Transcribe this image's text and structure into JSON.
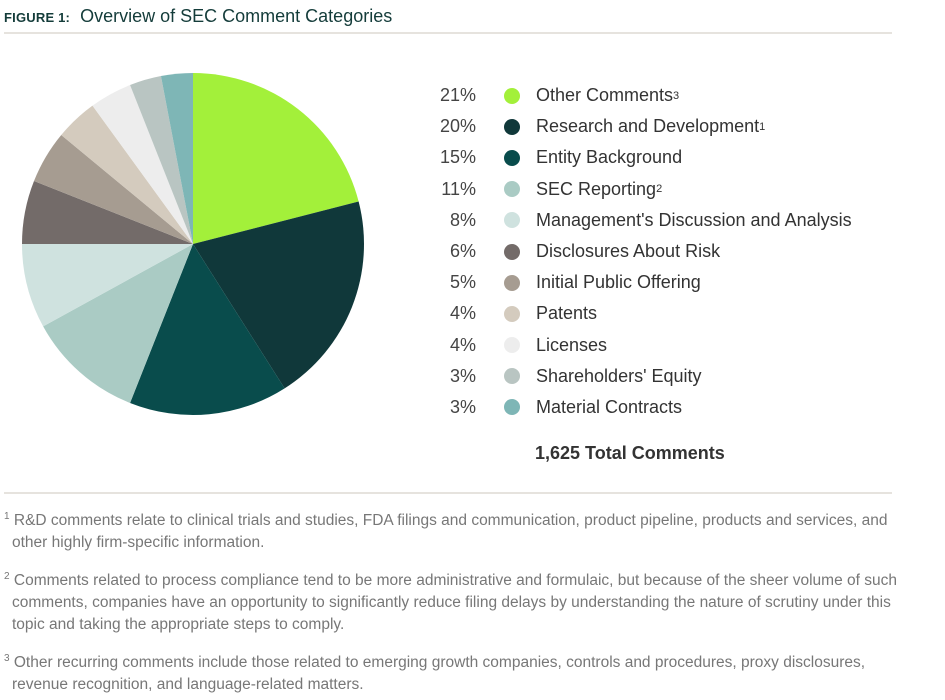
{
  "title": {
    "prefix": "FIGURE 1:",
    "text": "Overview of SEC Comment Categories"
  },
  "chart_data": {
    "type": "pie",
    "title": "Overview of SEC Comment Categories",
    "legend_position": "right",
    "slices": [
      {
        "label": "Other Comments",
        "sup": "3",
        "value": 21,
        "color": "#a3f03a"
      },
      {
        "label": "Research and Development",
        "sup": "1",
        "value": 20,
        "color": "#10383a"
      },
      {
        "label": "Entity Background",
        "sup": "",
        "value": 15,
        "color": "#094c4c"
      },
      {
        "label": "SEC Reporting",
        "sup": "2",
        "value": 11,
        "color": "#aacbc4"
      },
      {
        "label": "Management's Discussion and Analysis",
        "sup": "",
        "value": 8,
        "color": "#cfe2df"
      },
      {
        "label": "Disclosures About Risk",
        "sup": "",
        "value": 6,
        "color": "#736b69"
      },
      {
        "label": "Initial Public Offering",
        "sup": "",
        "value": 5,
        "color": "#a69c91"
      },
      {
        "label": "Patents",
        "sup": "",
        "value": 4,
        "color": "#d4cbbe"
      },
      {
        "label": "Licenses",
        "sup": "",
        "value": 4,
        "color": "#ededed"
      },
      {
        "label": "Shareholders' Equity",
        "sup": "",
        "value": 3,
        "color": "#b9c5c2"
      },
      {
        "label": "Material Contracts",
        "sup": "",
        "value": 3,
        "color": "#7eb6b6"
      }
    ],
    "total": "1,625 Total Comments"
  },
  "footnotes": [
    {
      "n": "1",
      "text": "R&D comments relate to clinical trials and studies, FDA filings and communication, product pipeline, products and services, and other highly firm-specific information."
    },
    {
      "n": "2",
      "text": "Comments related to process compliance tend to be more administrative and formulaic, but because of the sheer volume of such comments, companies have an opportunity to significantly reduce filing delays by understanding the nature of scrutiny under this topic and taking the appropriate steps to comply."
    },
    {
      "n": "3",
      "text": "Other recurring comments include those related to emerging growth companies, controls and procedures, proxy disclosures, revenue recognition, and language-related matters."
    }
  ]
}
